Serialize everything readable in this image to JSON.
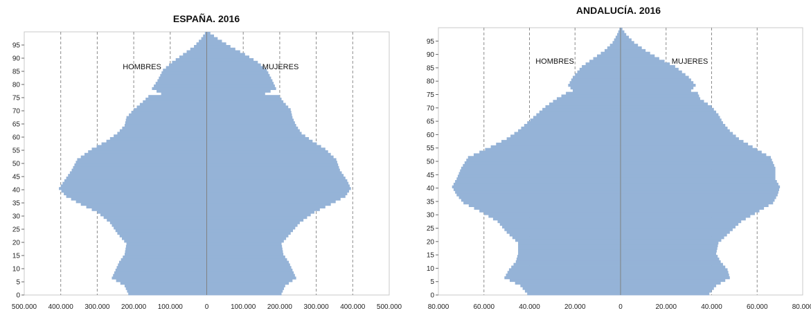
{
  "chart_data": [
    {
      "type": "bar",
      "orientation": "horizontal",
      "subtype": "population-pyramid",
      "title": "ESPAÑA. 2016",
      "left_label": "HOMBRES",
      "right_label": "MUJERES",
      "bar_color": "#95B3D7",
      "xlim": [
        -500000,
        500000
      ],
      "ylim": [
        0,
        100
      ],
      "x_tick_labels": [
        "500.000",
        "400.000",
        "300.000",
        "200.000",
        "100.000",
        "0",
        "100.000",
        "200.000",
        "300.000",
        "400.000",
        "500.000"
      ],
      "y_tick_labels": [
        "0",
        "5",
        "10",
        "15",
        "20",
        "25",
        "30",
        "35",
        "40",
        "45",
        "50",
        "55",
        "60",
        "65",
        "70",
        "75",
        "80",
        "85",
        "90",
        "95"
      ],
      "grid": "vertical dashed",
      "ages_step": 1,
      "men_anchors": [
        [
          0,
          215000
        ],
        [
          3,
          225000
        ],
        [
          6,
          260000
        ],
        [
          9,
          250000
        ],
        [
          12,
          240000
        ],
        [
          15,
          225000
        ],
        [
          19,
          220000
        ],
        [
          23,
          245000
        ],
        [
          27,
          265000
        ],
        [
          31,
          300000
        ],
        [
          34,
          345000
        ],
        [
          37,
          385000
        ],
        [
          40,
          405000
        ],
        [
          43,
          390000
        ],
        [
          47,
          370000
        ],
        [
          51,
          355000
        ],
        [
          55,
          315000
        ],
        [
          58,
          275000
        ],
        [
          61,
          245000
        ],
        [
          64,
          225000
        ],
        [
          67,
          220000
        ],
        [
          70,
          200000
        ],
        [
          73,
          175000
        ],
        [
          75,
          160000
        ],
        [
          76,
          125000
        ],
        [
          78,
          150000
        ],
        [
          81,
          135000
        ],
        [
          85,
          120000
        ],
        [
          88,
          95000
        ],
        [
          91,
          65000
        ],
        [
          94,
          35000
        ],
        [
          97,
          15000
        ],
        [
          100,
          0
        ]
      ],
      "women_anchors": [
        [
          0,
          205000
        ],
        [
          3,
          215000
        ],
        [
          6,
          245000
        ],
        [
          9,
          235000
        ],
        [
          12,
          225000
        ],
        [
          15,
          210000
        ],
        [
          19,
          205000
        ],
        [
          23,
          230000
        ],
        [
          27,
          255000
        ],
        [
          31,
          295000
        ],
        [
          34,
          340000
        ],
        [
          37,
          380000
        ],
        [
          40,
          395000
        ],
        [
          43,
          385000
        ],
        [
          47,
          365000
        ],
        [
          51,
          355000
        ],
        [
          55,
          325000
        ],
        [
          58,
          290000
        ],
        [
          61,
          260000
        ],
        [
          64,
          245000
        ],
        [
          67,
          235000
        ],
        [
          70,
          230000
        ],
        [
          73,
          210000
        ],
        [
          75,
          200000
        ],
        [
          76,
          160000
        ],
        [
          78,
          190000
        ],
        [
          81,
          180000
        ],
        [
          85,
          165000
        ],
        [
          88,
          140000
        ],
        [
          91,
          105000
        ],
        [
          94,
          65000
        ],
        [
          97,
          30000
        ],
        [
          100,
          0
        ]
      ]
    },
    {
      "type": "bar",
      "orientation": "horizontal",
      "subtype": "population-pyramid",
      "title": "ANDALUCÍA. 2016",
      "left_label": "HOMBRES",
      "right_label": "MUJERES",
      "bar_color": "#95B3D7",
      "xlim": [
        -80000,
        80000
      ],
      "ylim": [
        0,
        100
      ],
      "x_tick_labels": [
        "80.000",
        "60.000",
        "40.000",
        "20.000",
        "0",
        "20.000",
        "40.000",
        "60.000",
        "80.000"
      ],
      "y_tick_labels": [
        "0",
        "5",
        "10",
        "15",
        "20",
        "25",
        "30",
        "35",
        "40",
        "45",
        "50",
        "55",
        "60",
        "65",
        "70",
        "75",
        "80",
        "85",
        "90",
        "95"
      ],
      "grid": "vertical dashed",
      "ages_step": 1,
      "men_anchors": [
        [
          0,
          41000
        ],
        [
          3,
          44000
        ],
        [
          6,
          51000
        ],
        [
          9,
          49000
        ],
        [
          12,
          46000
        ],
        [
          15,
          45000
        ],
        [
          19,
          45000
        ],
        [
          23,
          50000
        ],
        [
          27,
          54000
        ],
        [
          31,
          62000
        ],
        [
          34,
          69000
        ],
        [
          37,
          72000
        ],
        [
          40,
          74000
        ],
        [
          43,
          72000
        ],
        [
          47,
          70000
        ],
        [
          51,
          67000
        ],
        [
          55,
          57000
        ],
        [
          58,
          50000
        ],
        [
          61,
          45000
        ],
        [
          64,
          41000
        ],
        [
          67,
          37000
        ],
        [
          70,
          33000
        ],
        [
          73,
          28000
        ],
        [
          75,
          24000
        ],
        [
          76,
          21000
        ],
        [
          78,
          23000
        ],
        [
          81,
          21000
        ],
        [
          85,
          17000
        ],
        [
          88,
          12000
        ],
        [
          91,
          7000
        ],
        [
          94,
          3500
        ],
        [
          97,
          1500
        ],
        [
          100,
          0
        ]
      ],
      "women_anchors": [
        [
          0,
          39000
        ],
        [
          3,
          42000
        ],
        [
          6,
          48000
        ],
        [
          9,
          47000
        ],
        [
          12,
          44000
        ],
        [
          15,
          42000
        ],
        [
          19,
          43000
        ],
        [
          23,
          48000
        ],
        [
          27,
          53000
        ],
        [
          31,
          61000
        ],
        [
          34,
          67000
        ],
        [
          37,
          69000
        ],
        [
          40,
          70000
        ],
        [
          43,
          68000
        ],
        [
          47,
          68000
        ],
        [
          51,
          66000
        ],
        [
          55,
          58000
        ],
        [
          58,
          52000
        ],
        [
          61,
          48000
        ],
        [
          64,
          45000
        ],
        [
          67,
          43000
        ],
        [
          70,
          40000
        ],
        [
          73,
          35000
        ],
        [
          75,
          34000
        ],
        [
          76,
          31000
        ],
        [
          78,
          33000
        ],
        [
          81,
          30000
        ],
        [
          85,
          24000
        ],
        [
          88,
          17000
        ],
        [
          91,
          11000
        ],
        [
          94,
          6000
        ],
        [
          97,
          2500
        ],
        [
          100,
          0
        ]
      ]
    }
  ]
}
